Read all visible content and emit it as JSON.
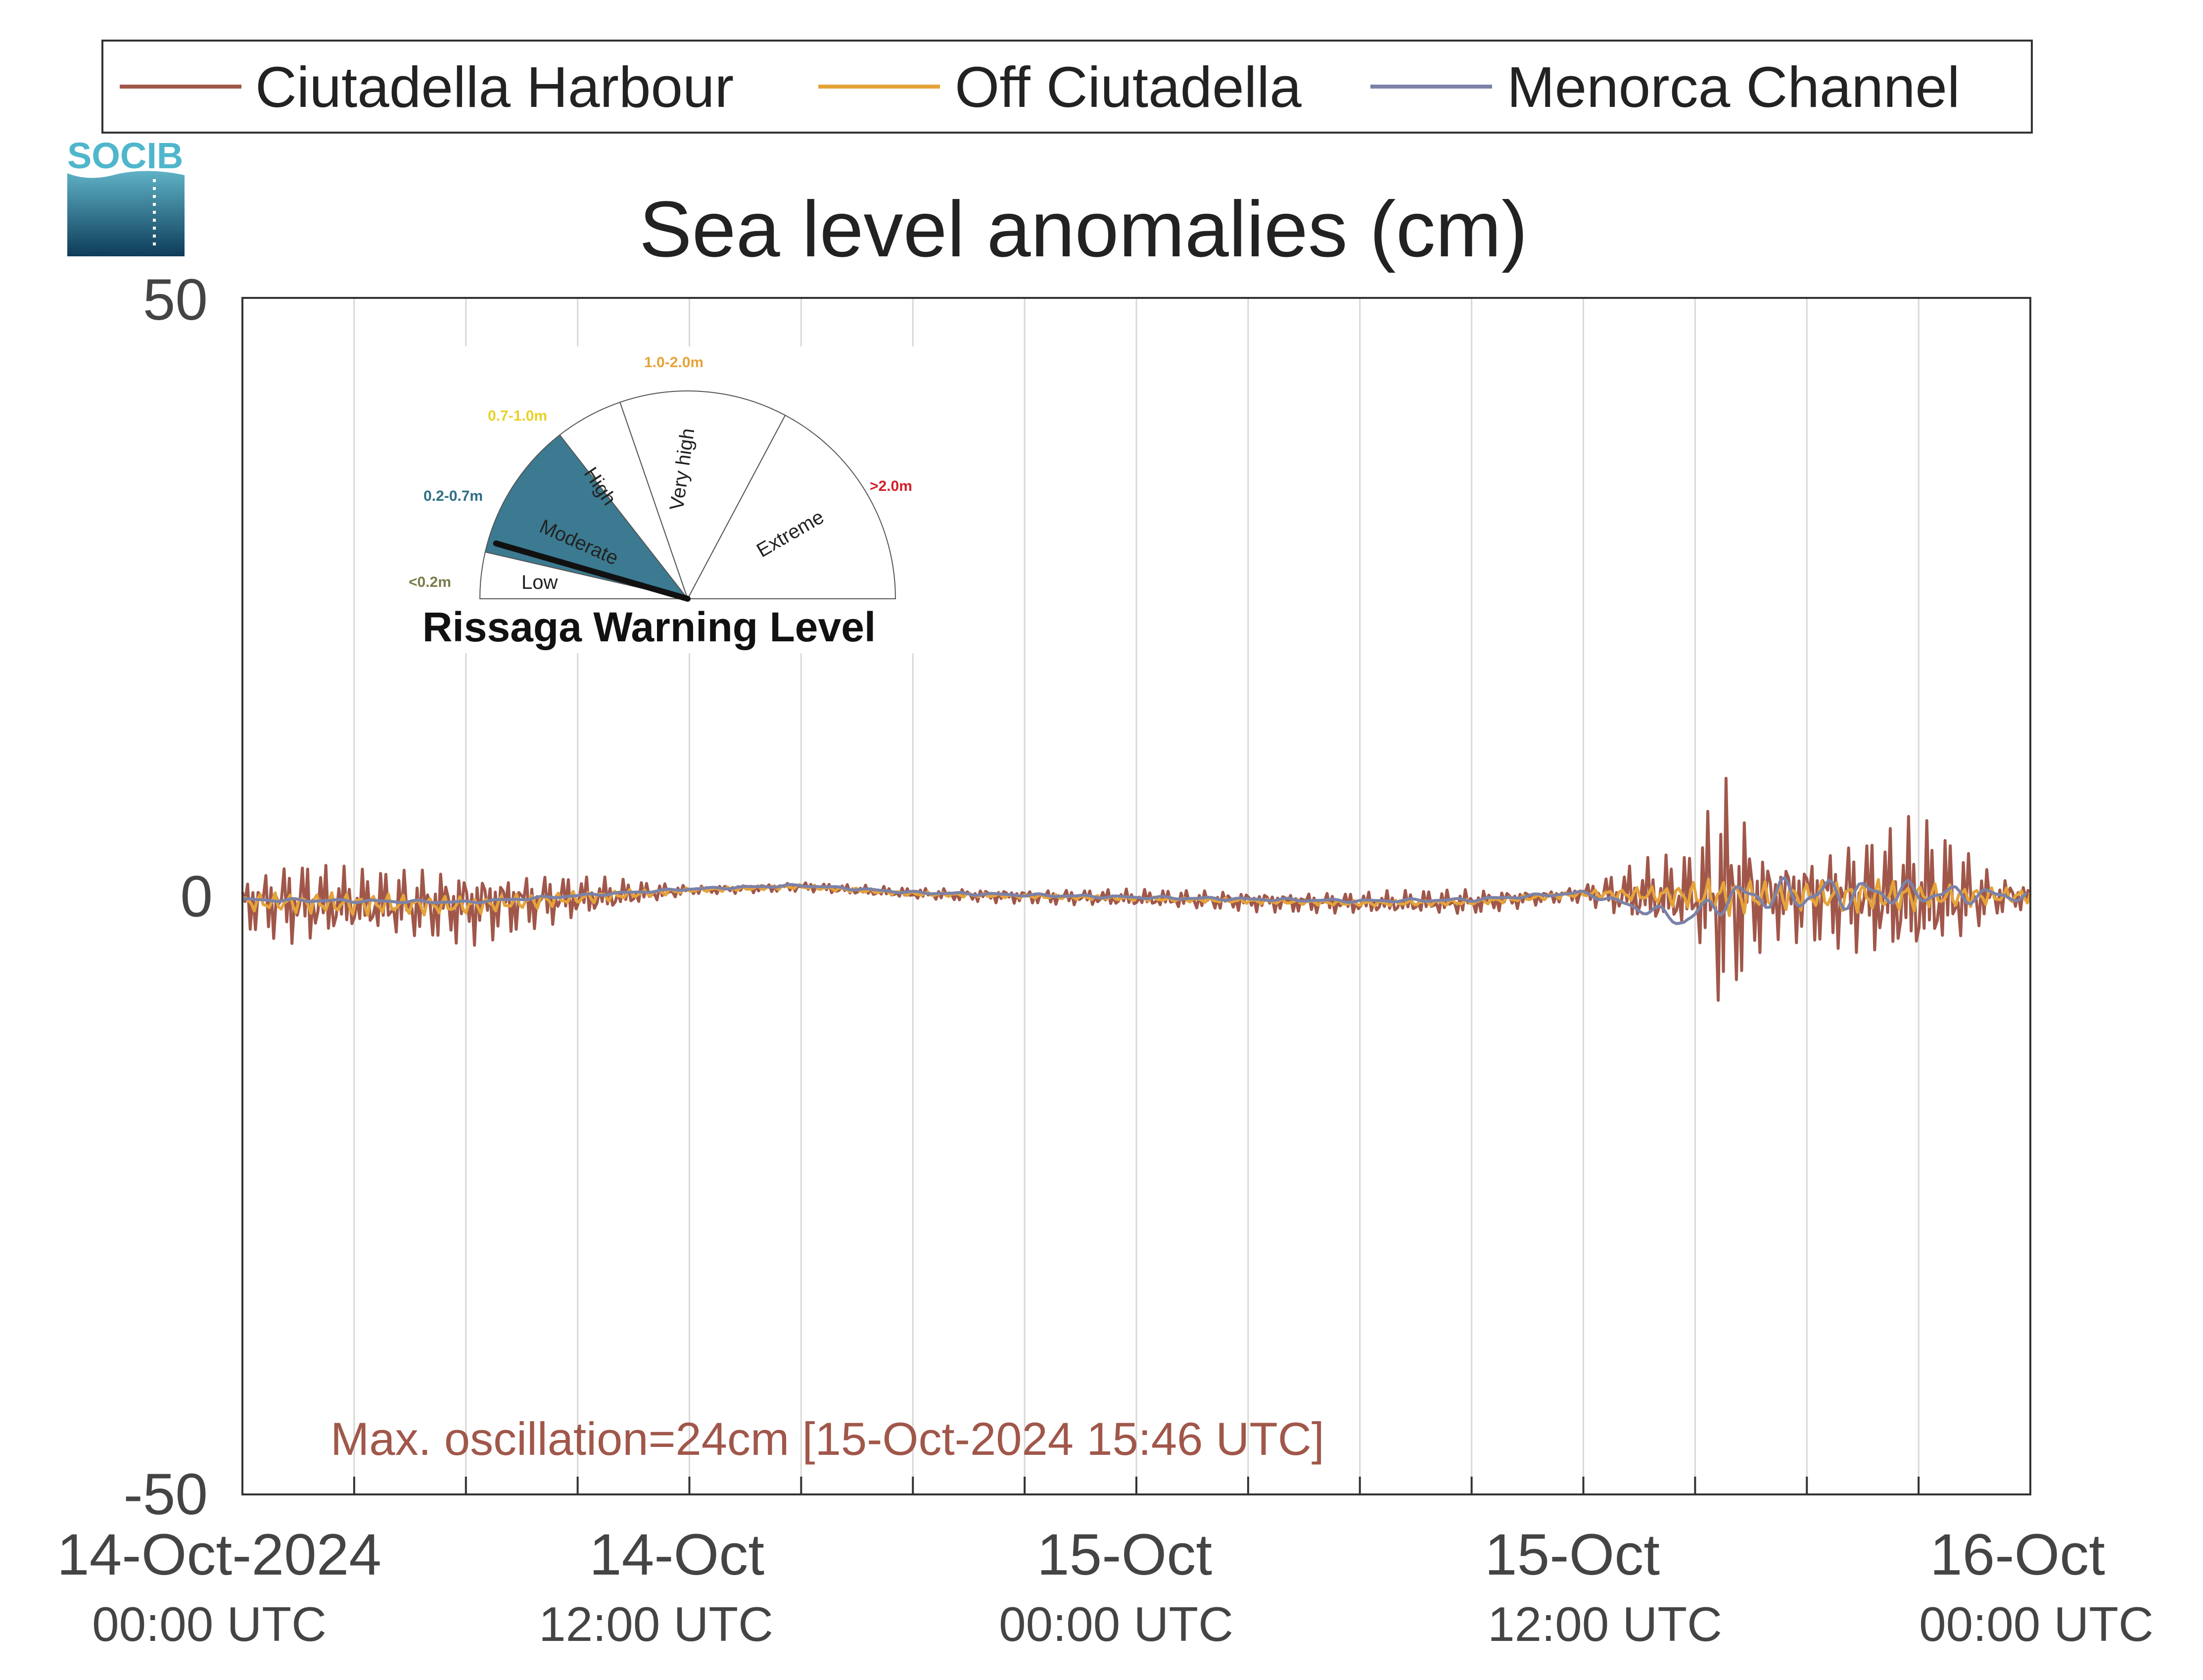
{
  "logo": {
    "text": "SOCIB",
    "color": "#4fb6cc"
  },
  "legend": [
    {
      "name": "Ciutadella Harbour",
      "color": "#a0574a"
    },
    {
      "name": "Off Ciutadella",
      "color": "#e5a33a"
    },
    {
      "name": "Menorca Channel",
      "color": "#7b82a8"
    }
  ],
  "chart_data": {
    "type": "line",
    "title": "Sea level anomalies (cm)",
    "xlabel": "",
    "ylabel": "",
    "ylim": [
      -50,
      50
    ],
    "yticks": [
      "50",
      "0",
      "-50"
    ],
    "xlim_hours": [
      0,
      48
    ],
    "grid": "vertical every 3 hours",
    "xticks": [
      {
        "date": "14-Oct-2024",
        "time": "00:00 UTC",
        "hour": 0
      },
      {
        "date": "14-Oct",
        "time": "12:00 UTC",
        "hour": 12
      },
      {
        "date": "15-Oct",
        "time": "00:00 UTC",
        "hour": 24
      },
      {
        "date": "15-Oct",
        "time": "12:00 UTC",
        "hour": 36
      },
      {
        "date": "16-Oct",
        "time": "00:00 UTC",
        "hour": 48
      }
    ],
    "series": [
      {
        "name": "Ciutadella Harbour",
        "envelope_hour": [
          0,
          1.5,
          3,
          6,
          9,
          12,
          14,
          18,
          24,
          30,
          33,
          35,
          36,
          37.5,
          39,
          39.7,
          41,
          43,
          45,
          46,
          47,
          48
        ],
        "envelope_amp": [
          2.5,
          4,
          3,
          3.5,
          2,
          0.4,
          0.4,
          0.5,
          0.8,
          1,
          1.2,
          0.6,
          0.8,
          3,
          4,
          12,
          3.5,
          5,
          7,
          5,
          2,
          1
        ],
        "mean_hour": [
          0,
          6,
          12,
          15,
          18,
          24,
          30,
          33,
          36,
          40,
          44,
          48
        ],
        "mean_value": [
          -0.5,
          -0.8,
          0.5,
          0.8,
          0.2,
          -0.2,
          -0.6,
          -0.5,
          0.2,
          0,
          0,
          0
        ]
      },
      {
        "name": "Off Ciutadella",
        "envelope_hour": [
          0,
          3,
          9,
          12,
          24,
          36,
          38,
          40,
          41,
          44,
          46,
          48
        ],
        "envelope_amp": [
          0.8,
          1,
          0.6,
          0.2,
          0.2,
          0.3,
          0.8,
          1.8,
          1.2,
          1.5,
          1,
          0.6
        ],
        "mean_hour": [
          0,
          6,
          12,
          15,
          18,
          24,
          30,
          33,
          36,
          40,
          44,
          48
        ],
        "mean_value": [
          -0.5,
          -0.8,
          0.5,
          0.8,
          0.2,
          -0.2,
          -0.6,
          -0.5,
          0.2,
          0,
          0,
          0
        ]
      },
      {
        "name": "Menorca Channel",
        "envelope_hour": [
          0,
          12,
          36,
          38,
          40,
          42,
          44,
          48
        ],
        "envelope_amp": [
          0.15,
          0.1,
          0.15,
          0.6,
          1.2,
          1.6,
          1.2,
          0.5
        ],
        "mean_hour": [
          0,
          6,
          12,
          15,
          18,
          24,
          30,
          33,
          36,
          38.7,
          40,
          44,
          48
        ],
        "mean_value": [
          -0.3,
          -0.5,
          0.6,
          0.9,
          0.3,
          -0.1,
          -0.4,
          -0.3,
          0.3,
          -2,
          0,
          0.3,
          0
        ]
      }
    ],
    "annotation": {
      "text": "Max. oscillation=24cm [15-Oct-2024 15:46 UTC]",
      "color": "#a0574a"
    }
  },
  "gauge": {
    "title": "Rissaga Warning Level",
    "levels": [
      {
        "label": "Low",
        "range": "<0.2m",
        "range_color": "#7b7b4a",
        "fill": "#ffffff"
      },
      {
        "label": "Moderate",
        "range": "0.2-0.7m",
        "range_color": "#2f6f86",
        "fill": "#3b7a91"
      },
      {
        "label": "High",
        "range": "0.7-1.0m",
        "range_color": "#e8d12a",
        "fill": "#ffffff"
      },
      {
        "label": "Very high",
        "range": "1.0-2.0m",
        "range_color": "#e5a33a",
        "fill": "#ffffff"
      },
      {
        "label": "Extreme",
        "range": ">2.0m",
        "range_color": "#d0202a",
        "fill": "#ffffff"
      }
    ],
    "needle_m": 0.24
  }
}
